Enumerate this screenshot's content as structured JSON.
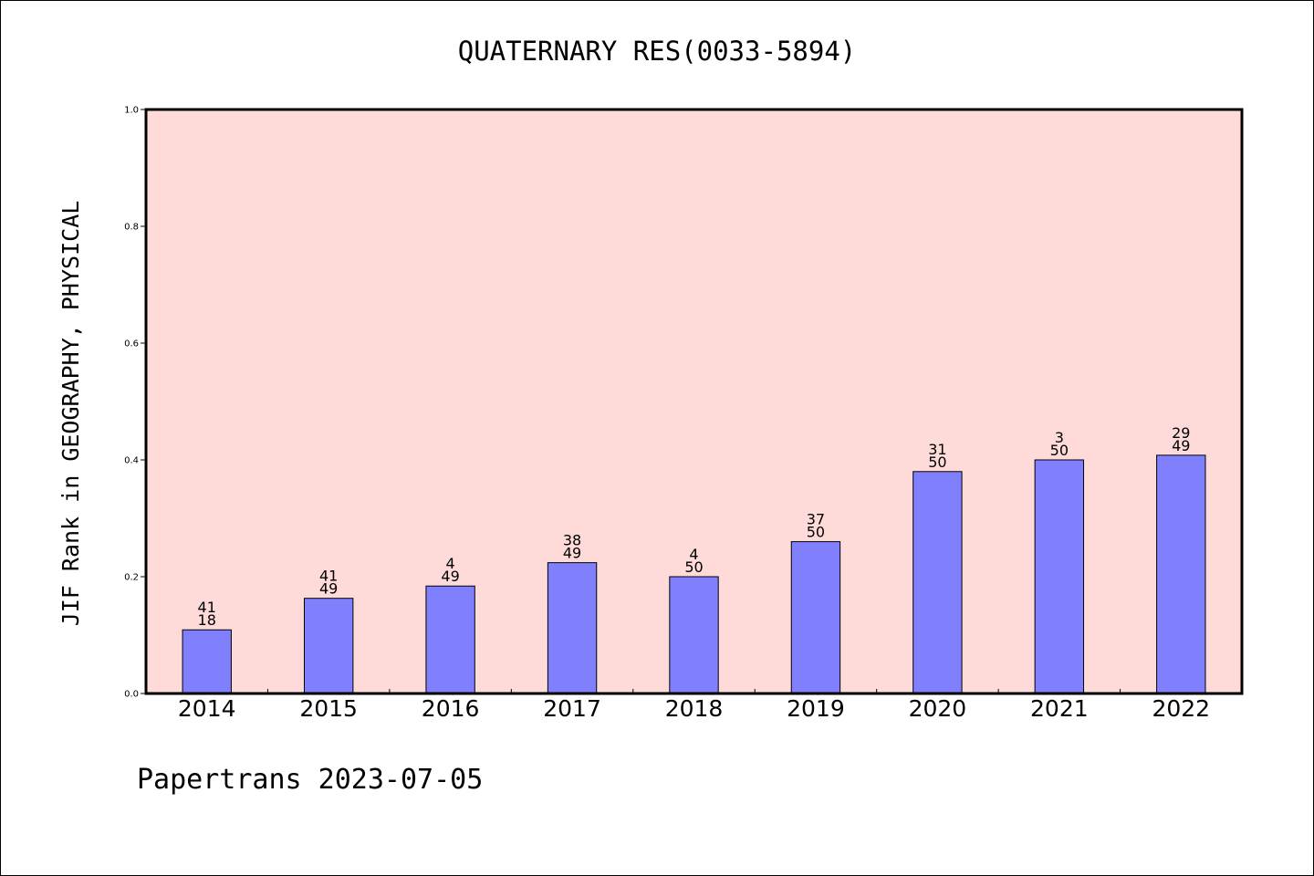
{
  "chart_data": {
    "type": "bar",
    "title": "QUATERNARY RES(0033-5894)",
    "ylabel": "JIF Rank in GEOGRAPHY, PHYSICAL",
    "xlabel": "",
    "ylim": [
      0,
      1.0
    ],
    "yticks": [
      "0.0",
      "0.2",
      "0.4",
      "0.6",
      "0.8",
      "1.0"
    ],
    "yticks_values": [
      0.0,
      0.2,
      0.4,
      0.6,
      0.8,
      1.0
    ],
    "categories": [
      "2014",
      "2015",
      "2016",
      "2017",
      "2018",
      "2019",
      "2020",
      "2021",
      "2022"
    ],
    "values": [
      0.109,
      0.163,
      0.184,
      0.224,
      0.2,
      0.26,
      0.38,
      0.4,
      0.408
    ],
    "labels_top": [
      "41",
      "41",
      "4",
      "38",
      "4",
      "37",
      "31",
      "3",
      "29"
    ],
    "labels_bottom": [
      "18",
      "49",
      "49",
      "49",
      "50",
      "50",
      "50",
      "50",
      "49"
    ],
    "grid": false,
    "colors": {
      "plot_background": "#fedbd8",
      "bar_fill": "#8080ff",
      "bar_stroke": "#000000"
    }
  },
  "footer": {
    "text": "Papertrans 2023-07-05"
  }
}
